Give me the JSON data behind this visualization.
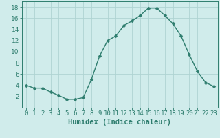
{
  "x": [
    0,
    1,
    2,
    3,
    4,
    5,
    6,
    7,
    8,
    9,
    10,
    11,
    12,
    13,
    14,
    15,
    16,
    17,
    18,
    19,
    20,
    21,
    22,
    23
  ],
  "y": [
    4.0,
    3.5,
    3.5,
    2.8,
    2.2,
    1.5,
    1.5,
    1.8,
    5.0,
    9.2,
    12.0,
    12.8,
    14.7,
    15.5,
    16.5,
    17.8,
    17.8,
    16.5,
    15.0,
    12.8,
    9.5,
    6.5,
    4.5,
    3.8
  ],
  "line_color": "#2e7d6e",
  "marker": "D",
  "marker_size": 2.5,
  "bg_color": "#d0eceb",
  "grid_color": "#afd4d2",
  "xlabel": "Humidex (Indice chaleur)",
  "xlim": [
    -0.5,
    23.5
  ],
  "ylim": [
    0,
    19
  ],
  "yticks": [
    2,
    4,
    6,
    8,
    10,
    12,
    14,
    16,
    18
  ],
  "xticks": [
    0,
    1,
    2,
    3,
    4,
    5,
    6,
    7,
    8,
    9,
    10,
    11,
    12,
    13,
    14,
    15,
    16,
    17,
    18,
    19,
    20,
    21,
    22,
    23
  ],
  "xlabel_fontsize": 7.5,
  "tick_fontsize": 6.5,
  "line_width": 1.0
}
